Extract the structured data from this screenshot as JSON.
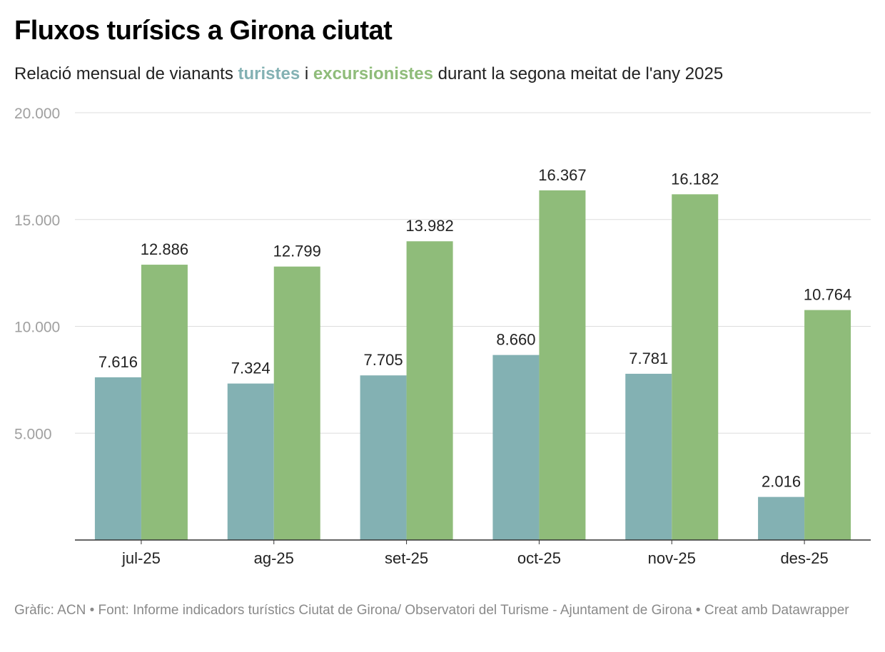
{
  "title": "Fluxos turísics a Girona ciutat",
  "subtitle": {
    "pre": "Relació mensual de vianants ",
    "series_a": "turistes",
    "mid": " i ",
    "series_b": "excursionistes",
    "post": " durant la segona meitat de l'any 2025"
  },
  "footer": "Gràfic: ACN • Font: Informe indicadors turístics Ciutat de Girona/ Observatori del Turisme - Ajuntament de Girona • Creat amb Datawrapper",
  "chart_data": {
    "type": "bar",
    "categories": [
      "jul-25",
      "ag-25",
      "set-25",
      "oct-25",
      "nov-25",
      "des-25"
    ],
    "series": [
      {
        "name": "turistes",
        "color": "#83b1b3",
        "values": [
          7616,
          7324,
          7705,
          8660,
          7781,
          2016
        ],
        "labels": [
          "7.616",
          "7.324",
          "7.705",
          "8.660",
          "7.781",
          "2.016"
        ]
      },
      {
        "name": "excursionistes",
        "color": "#8fbc7a",
        "values": [
          12886,
          12799,
          13982,
          16367,
          16182,
          10764
        ],
        "labels": [
          "12.886",
          "12.799",
          "13.982",
          "16.367",
          "16.182",
          "10.764"
        ]
      }
    ],
    "ylim": [
      0,
      20000
    ],
    "yticks": [
      5000,
      10000,
      15000,
      20000
    ],
    "ytick_labels": [
      "5.000",
      "10.000",
      "15.000",
      "20.000"
    ],
    "grid": true,
    "legend": "inline in subtitle"
  }
}
